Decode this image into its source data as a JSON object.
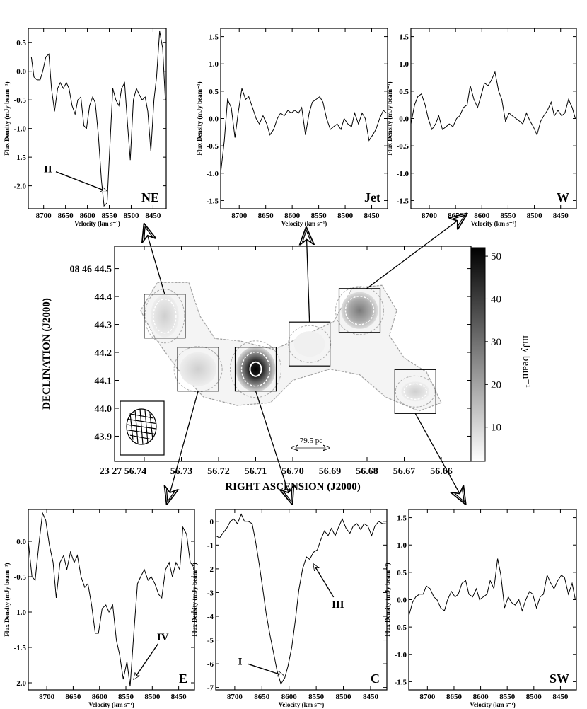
{
  "chart_data": {
    "type": "line",
    "velocity_ticks": [
      "8700",
      "8650",
      "8600",
      "8550",
      "8500",
      "8450"
    ],
    "velocity_values": [
      8700,
      8650,
      8600,
      8550,
      8500,
      8450
    ],
    "velocity_axis": "Velocity (km s⁻¹)",
    "flux_axis": "Flux Density (mJy beam⁻¹)",
    "panels": [
      {
        "name": "NE",
        "xlim": [
          8735,
          8420
        ],
        "ylim": [
          -2.4,
          0.75
        ],
        "yticks": [
          0.5,
          0.0,
          -0.5,
          -1.0,
          -1.5,
          -2.0
        ],
        "ytick_labels": [
          "0.5",
          "0.0",
          "-0.5",
          "-1.0",
          "-1.5",
          "-2.0"
        ],
        "annotations": [
          {
            "label": "II",
            "x": 8555,
            "y": -2.1,
            "label_x": 8690,
            "label_y": -1.7
          }
        ],
        "x": [
          8735,
          8728,
          8722,
          8715,
          8708,
          8702,
          8695,
          8688,
          8682,
          8675,
          8668,
          8662,
          8655,
          8648,
          8642,
          8635,
          8628,
          8622,
          8615,
          8608,
          8602,
          8595,
          8588,
          8582,
          8575,
          8568,
          8562,
          8555,
          8548,
          8542,
          8535,
          8528,
          8522,
          8515,
          8508,
          8502,
          8495,
          8488,
          8482,
          8475,
          8468,
          8462,
          8455,
          8448,
          8442,
          8435,
          8428,
          8422
        ],
        "y": [
          0.25,
          0.25,
          -0.1,
          -0.15,
          -0.15,
          0.0,
          0.25,
          0.3,
          -0.3,
          -0.7,
          -0.3,
          -0.2,
          -0.3,
          -0.2,
          -0.3,
          -0.6,
          -0.75,
          -0.5,
          -0.45,
          -0.95,
          -1.0,
          -0.6,
          -0.45,
          -0.55,
          -1.1,
          -1.9,
          -2.35,
          -2.3,
          -1.2,
          -0.3,
          -0.5,
          -0.6,
          -0.3,
          -0.2,
          -0.95,
          -1.55,
          -0.5,
          -0.3,
          -0.4,
          -0.5,
          -0.45,
          -0.7,
          -1.4,
          -0.5,
          -0.1,
          0.7,
          0.4,
          -0.5
        ]
      },
      {
        "name": "Jet",
        "xlim": [
          8735,
          8420
        ],
        "ylim": [
          -1.65,
          1.65
        ],
        "yticks": [
          1.5,
          1.0,
          0.5,
          0.0,
          -0.5,
          -1.0,
          -1.5
        ],
        "ytick_labels": [
          "1.5",
          "1.0",
          "0.5",
          "0.0",
          "-0.5",
          "-1.0",
          "-1.5"
        ],
        "annotations": [],
        "x": [
          8735,
          8728,
          8722,
          8715,
          8708,
          8702,
          8695,
          8688,
          8682,
          8675,
          8668,
          8662,
          8655,
          8648,
          8642,
          8635,
          8628,
          8622,
          8615,
          8608,
          8602,
          8595,
          8588,
          8582,
          8575,
          8568,
          8562,
          8555,
          8548,
          8542,
          8535,
          8528,
          8522,
          8515,
          8508,
          8502,
          8495,
          8488,
          8482,
          8475,
          8468,
          8462,
          8455,
          8448,
          8442,
          8435,
          8428,
          8422
        ],
        "y": [
          -1.0,
          -0.4,
          0.35,
          0.2,
          -0.35,
          0.1,
          0.55,
          0.35,
          0.4,
          0.2,
          0.0,
          -0.1,
          0.05,
          -0.1,
          -0.3,
          -0.2,
          0.0,
          0.1,
          0.05,
          0.15,
          0.1,
          0.15,
          0.1,
          0.2,
          -0.3,
          0.1,
          0.3,
          0.35,
          0.4,
          0.3,
          0.0,
          -0.2,
          -0.15,
          -0.1,
          -0.2,
          0.0,
          -0.1,
          -0.15,
          0.1,
          -0.1,
          0.1,
          0.0,
          -0.4,
          -0.3,
          -0.2,
          0.0,
          0.15,
          0.1
        ]
      },
      {
        "name": "W",
        "xlim": [
          8735,
          8420
        ],
        "ylim": [
          -1.65,
          1.65
        ],
        "yticks": [
          1.5,
          1.0,
          0.5,
          0.0,
          -0.5,
          -1.0,
          -1.5
        ],
        "ytick_labels": [
          "1.5",
          "1.0",
          "0.5",
          "0.0",
          "-0.5",
          "-1.0",
          "-1.5"
        ],
        "annotations": [],
        "x": [
          8735,
          8728,
          8722,
          8715,
          8708,
          8702,
          8695,
          8688,
          8682,
          8675,
          8668,
          8662,
          8655,
          8648,
          8642,
          8635,
          8628,
          8622,
          8615,
          8608,
          8602,
          8595,
          8588,
          8582,
          8575,
          8568,
          8562,
          8555,
          8548,
          8542,
          8535,
          8528,
          8522,
          8515,
          8508,
          8502,
          8495,
          8488,
          8482,
          8475,
          8468,
          8462,
          8455,
          8448,
          8442,
          8435,
          8428,
          8422
        ],
        "y": [
          -0.1,
          0.25,
          0.4,
          0.45,
          0.25,
          0.0,
          -0.2,
          -0.1,
          0.05,
          -0.2,
          -0.15,
          -0.1,
          -0.15,
          0.0,
          0.05,
          0.2,
          0.25,
          0.6,
          0.35,
          0.2,
          0.4,
          0.65,
          0.6,
          0.7,
          0.85,
          0.5,
          0.35,
          -0.05,
          0.1,
          0.05,
          0.0,
          -0.05,
          -0.1,
          0.1,
          -0.05,
          -0.15,
          -0.3,
          -0.05,
          0.05,
          0.15,
          0.3,
          0.05,
          0.15,
          0.05,
          0.1,
          0.35,
          0.2,
          0.0
        ]
      },
      {
        "name": "E",
        "xlim": [
          8735,
          8420
        ],
        "ylim": [
          -2.1,
          0.45
        ],
        "yticks": [
          0.0,
          -0.5,
          -1.0,
          -1.5,
          -2.0
        ],
        "ytick_labels": [
          "0.0",
          "-0.5",
          "-1.0",
          "-1.5",
          "-2.0"
        ],
        "annotations": [
          {
            "label": "IV",
            "x": 8535,
            "y": -1.95,
            "label_x": 8480,
            "label_y": -1.35
          }
        ],
        "x": [
          8735,
          8728,
          8722,
          8715,
          8708,
          8702,
          8695,
          8688,
          8682,
          8675,
          8668,
          8662,
          8655,
          8648,
          8642,
          8635,
          8628,
          8622,
          8615,
          8608,
          8602,
          8595,
          8588,
          8582,
          8575,
          8568,
          8562,
          8555,
          8548,
          8542,
          8535,
          8528,
          8522,
          8515,
          8508,
          8502,
          8495,
          8488,
          8482,
          8475,
          8468,
          8462,
          8455,
          8448,
          8442,
          8435,
          8428,
          8422
        ],
        "y": [
          0.0,
          -0.5,
          -0.55,
          -0.05,
          0.4,
          0.3,
          -0.05,
          -0.3,
          -0.8,
          -0.3,
          -0.2,
          -0.4,
          -0.15,
          -0.3,
          -0.2,
          -0.5,
          -0.65,
          -0.6,
          -0.9,
          -1.3,
          -1.3,
          -0.95,
          -0.9,
          -1.0,
          -0.9,
          -1.4,
          -1.6,
          -1.95,
          -1.7,
          -2.05,
          -1.3,
          -0.6,
          -0.5,
          -0.4,
          -0.55,
          -0.5,
          -0.6,
          -0.75,
          -0.8,
          -0.4,
          -0.3,
          -0.5,
          -0.3,
          -0.4,
          0.2,
          0.1,
          -0.3,
          -0.35
        ]
      },
      {
        "name": "C",
        "xlim": [
          8735,
          8420
        ],
        "ylim": [
          -7.1,
          0.5
        ],
        "yticks": [
          0,
          -1,
          -2,
          -3,
          -4,
          -5,
          -6,
          -7
        ],
        "ytick_labels": [
          "0",
          "-1",
          "-2",
          "-3",
          "-4",
          "-5",
          "-6",
          "-7"
        ],
        "annotations": [
          {
            "label": "I",
            "x": 8610,
            "y": -6.5,
            "label_x": 8690,
            "label_y": -5.9
          },
          {
            "label": "III",
            "x": 8555,
            "y": -1.8,
            "label_x": 8510,
            "label_y": -3.5
          }
        ],
        "x": [
          8735,
          8728,
          8722,
          8715,
          8708,
          8702,
          8695,
          8688,
          8682,
          8675,
          8668,
          8662,
          8655,
          8648,
          8642,
          8635,
          8628,
          8622,
          8615,
          8608,
          8602,
          8595,
          8588,
          8582,
          8575,
          8568,
          8562,
          8555,
          8548,
          8542,
          8535,
          8528,
          8522,
          8515,
          8508,
          8502,
          8495,
          8488,
          8482,
          8475,
          8468,
          8462,
          8455,
          8448,
          8442,
          8435,
          8428,
          8422
        ],
        "y": [
          -0.6,
          -0.7,
          -0.5,
          -0.3,
          0.0,
          0.1,
          -0.1,
          0.3,
          0.0,
          0.0,
          -0.1,
          -0.8,
          -1.8,
          -2.9,
          -3.9,
          -4.8,
          -5.6,
          -6.3,
          -6.85,
          -6.6,
          -6.1,
          -5.3,
          -4.1,
          -2.9,
          -2.0,
          -1.5,
          -1.6,
          -1.3,
          -1.2,
          -0.8,
          -0.4,
          -0.6,
          -0.3,
          -0.6,
          -0.2,
          0.1,
          -0.3,
          -0.5,
          -0.2,
          -0.1,
          -0.35,
          -0.1,
          -0.2,
          -0.6,
          -0.2,
          0.0,
          -0.1,
          -0.1
        ]
      },
      {
        "name": "SW",
        "xlim": [
          8735,
          8420
        ],
        "ylim": [
          -1.65,
          1.65
        ],
        "yticks": [
          1.5,
          1.0,
          0.5,
          0.0,
          -0.5,
          -1.0,
          -1.5
        ],
        "ytick_labels": [
          "1.5",
          "1.0",
          "0.5",
          "0.0",
          "-0.5",
          "-1.0",
          "-1.5"
        ],
        "annotations": [],
        "x": [
          8735,
          8728,
          8722,
          8715,
          8708,
          8702,
          8695,
          8688,
          8682,
          8675,
          8668,
          8662,
          8655,
          8648,
          8642,
          8635,
          8628,
          8622,
          8615,
          8608,
          8602,
          8595,
          8588,
          8582,
          8575,
          8568,
          8562,
          8555,
          8548,
          8542,
          8535,
          8528,
          8522,
          8515,
          8508,
          8502,
          8495,
          8488,
          8482,
          8475,
          8468,
          8462,
          8455,
          8448,
          8442,
          8435,
          8428,
          8422
        ],
        "y": [
          -0.3,
          -0.05,
          0.05,
          0.1,
          0.1,
          0.25,
          0.2,
          0.05,
          0.0,
          -0.15,
          -0.2,
          0.0,
          0.15,
          0.05,
          0.1,
          0.3,
          0.35,
          0.1,
          0.05,
          0.2,
          0.0,
          0.05,
          0.1,
          0.35,
          0.2,
          0.75,
          0.45,
          -0.15,
          0.05,
          -0.05,
          -0.1,
          0.0,
          -0.2,
          0.0,
          0.15,
          0.1,
          -0.15,
          0.05,
          0.1,
          0.45,
          0.3,
          0.2,
          0.35,
          0.45,
          0.4,
          0.1,
          0.3,
          0.0
        ]
      }
    ],
    "map": {
      "type": "heatmap",
      "ra_label": "RIGHT ASCENSION (J2000)",
      "dec_label": "DECLINATION (J2000)",
      "ra_ticks": [
        "23 27 56.74",
        "56.73",
        "56.72",
        "56.71",
        "56.70",
        "56.69",
        "56.68",
        "56.67",
        "56.66"
      ],
      "ra_values": [
        56.74,
        56.73,
        56.72,
        56.71,
        56.7,
        56.69,
        56.68,
        56.67,
        56.66
      ],
      "ra_lim": [
        56.748,
        56.652
      ],
      "dec_ticks": [
        "08 46 44.5",
        "44.4",
        "44.3",
        "44.2",
        "44.1",
        "44.0",
        "43.9"
      ],
      "dec_values": [
        44.5,
        44.4,
        44.3,
        44.2,
        44.1,
        44.0,
        43.9
      ],
      "dec_lim": [
        43.81,
        44.58
      ],
      "colorbar_ticks": [
        "50",
        "40",
        "30",
        "20",
        "10"
      ],
      "colorbar_values": [
        50,
        40,
        30,
        20,
        10
      ],
      "colorbar_range": [
        2,
        52
      ],
      "colorbar_label": "mJy beam⁻¹",
      "scale_bar_label": "79.5 pc",
      "regions": [
        {
          "name": "NE",
          "ra": 56.7345,
          "dec": 44.33,
          "peak": 8
        },
        {
          "name": "E",
          "ra": 56.7255,
          "dec": 44.14,
          "peak": 6
        },
        {
          "name": "C",
          "ra": 56.71,
          "dec": 44.14,
          "peak": 50
        },
        {
          "name": "Jet",
          "ra": 56.6955,
          "dec": 44.23,
          "peak": 4
        },
        {
          "name": "W",
          "ra": 56.682,
          "dec": 44.35,
          "peak": 14
        },
        {
          "name": "SW",
          "ra": 56.667,
          "dec": 44.06,
          "peak": 5
        }
      ]
    }
  }
}
